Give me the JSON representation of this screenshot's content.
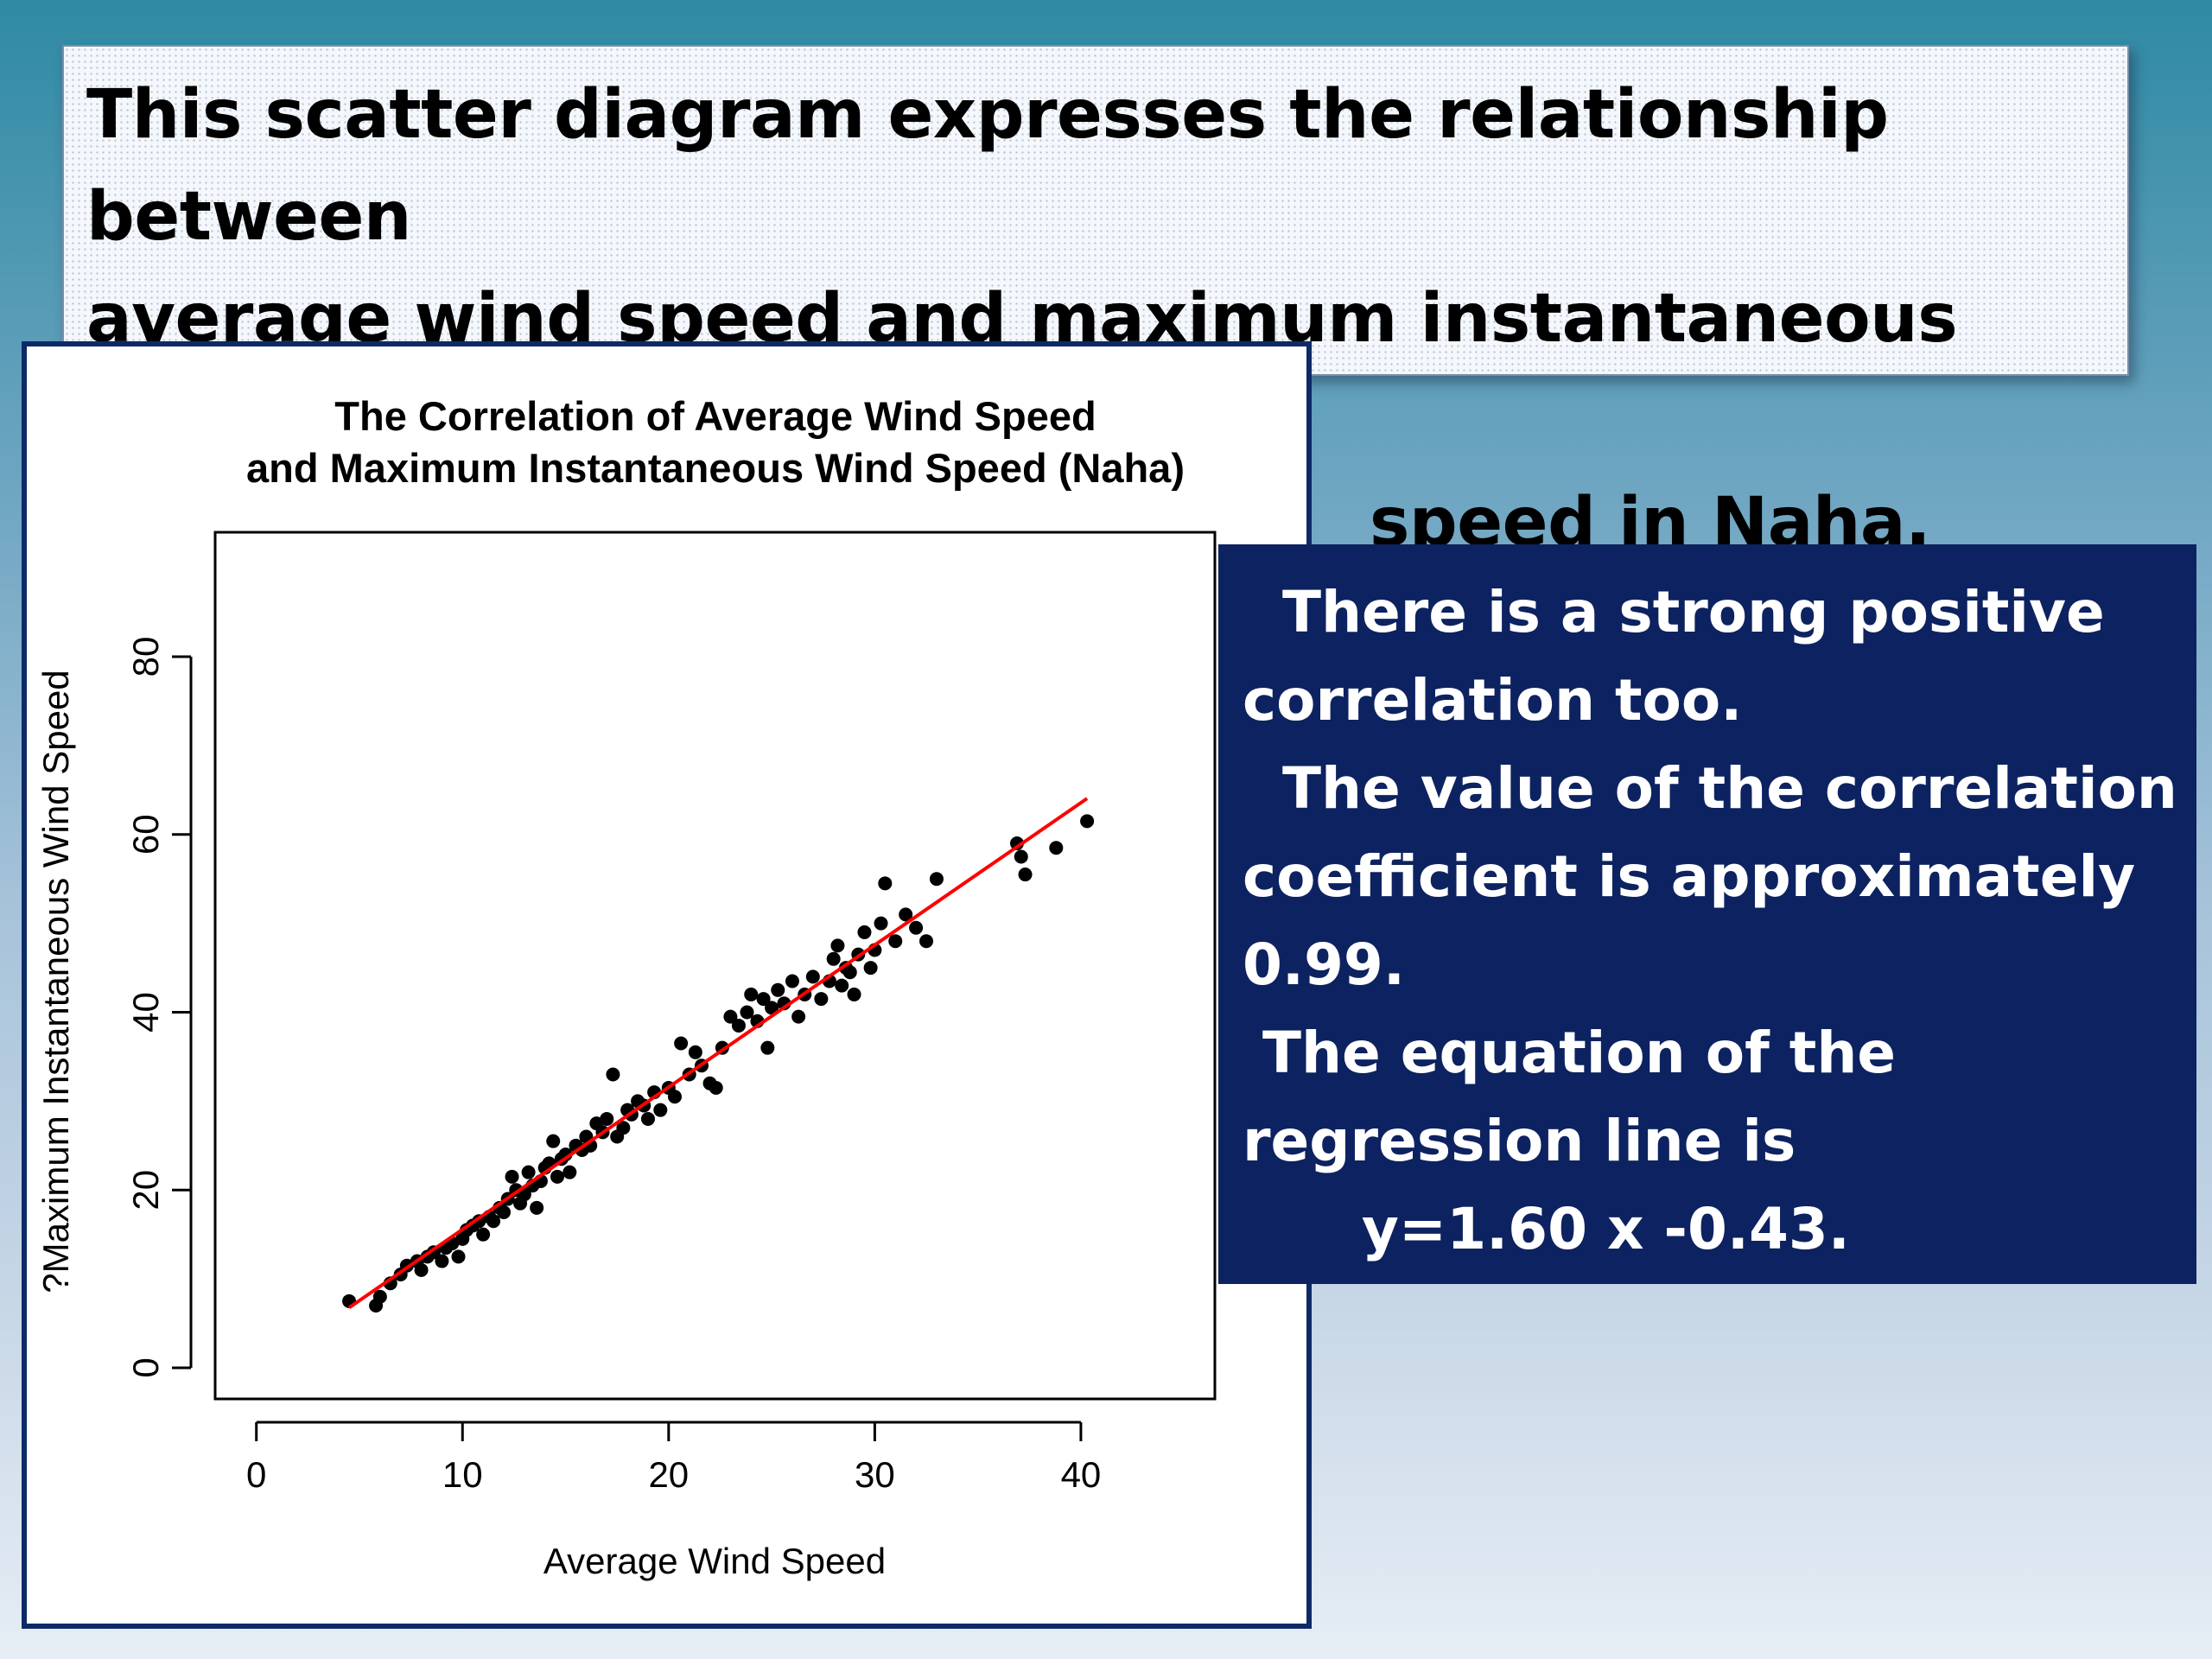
{
  "slide": {
    "headline_line1": "This scatter diagram expresses the relationship between",
    "headline_line2": "average wind speed and maximum instantaneous wind",
    "headline_line3": "speed in Naha.",
    "note_lines": [
      "  There is a strong positive",
      "correlation too.",
      "  The value of the correlation",
      "coefficient is approximately",
      "0.99.",
      " The equation of the",
      "regression line is",
      "      y=1.60 x -0.43."
    ],
    "colors": {
      "panel_border": "#0d2a66",
      "note_background": "#0d2260",
      "point": "#000000",
      "regression_line": "#ff0000"
    }
  },
  "chart_data": {
    "type": "scatter",
    "title_line1": "The Correlation of Average Wind Speed",
    "title_line2": "and Maximum Instantaneous Wind Speed (Naha)",
    "xlabel": "Average Wind Speed",
    "ylabel": "?Maximum Instantaneous Wind Speed",
    "xlim": [
      -2,
      46.5
    ],
    "ylim": [
      -3.5,
      94
    ],
    "x_ticks": [
      0,
      10,
      20,
      30,
      40
    ],
    "y_ticks": [
      0,
      20,
      40,
      60,
      80
    ],
    "grid": false,
    "points": [
      [
        4.5,
        7.5
      ],
      [
        5.8,
        7.0
      ],
      [
        6.0,
        8.0
      ],
      [
        6.5,
        9.5
      ],
      [
        7.0,
        10.5
      ],
      [
        7.3,
        11.5
      ],
      [
        7.8,
        12.0
      ],
      [
        8.0,
        11.0
      ],
      [
        8.3,
        12.5
      ],
      [
        8.6,
        13.0
      ],
      [
        9.0,
        12.0
      ],
      [
        9.2,
        13.5
      ],
      [
        9.5,
        14.0
      ],
      [
        9.8,
        12.5
      ],
      [
        10.0,
        14.5
      ],
      [
        10.2,
        15.5
      ],
      [
        10.5,
        16.0
      ],
      [
        10.8,
        16.5
      ],
      [
        11.0,
        15.0
      ],
      [
        11.3,
        17.0
      ],
      [
        11.5,
        16.5
      ],
      [
        11.8,
        18.0
      ],
      [
        12.0,
        17.5
      ],
      [
        12.2,
        19.0
      ],
      [
        12.4,
        21.5
      ],
      [
        12.6,
        20.0
      ],
      [
        12.8,
        18.5
      ],
      [
        13.0,
        19.5
      ],
      [
        13.2,
        22.0
      ],
      [
        13.4,
        20.5
      ],
      [
        13.6,
        18.0
      ],
      [
        13.8,
        21.0
      ],
      [
        14.0,
        22.5
      ],
      [
        14.2,
        23.0
      ],
      [
        14.4,
        25.5
      ],
      [
        14.6,
        21.5
      ],
      [
        14.8,
        23.5
      ],
      [
        15.0,
        24.0
      ],
      [
        15.2,
        22.0
      ],
      [
        15.5,
        25.0
      ],
      [
        15.8,
        24.5
      ],
      [
        16.0,
        26.0
      ],
      [
        16.2,
        25.0
      ],
      [
        16.5,
        27.5
      ],
      [
        16.8,
        26.5
      ],
      [
        17.0,
        28.0
      ],
      [
        17.3,
        33.0
      ],
      [
        17.5,
        26.0
      ],
      [
        17.8,
        27.0
      ],
      [
        18.0,
        29.0
      ],
      [
        18.2,
        28.5
      ],
      [
        18.5,
        30.0
      ],
      [
        18.8,
        29.5
      ],
      [
        19.0,
        28.0
      ],
      [
        19.3,
        31.0
      ],
      [
        19.6,
        29.0
      ],
      [
        20.0,
        31.5
      ],
      [
        20.3,
        30.5
      ],
      [
        20.6,
        36.5
      ],
      [
        21.0,
        33.0
      ],
      [
        21.3,
        35.5
      ],
      [
        21.6,
        34.0
      ],
      [
        22.0,
        32.0
      ],
      [
        22.3,
        31.5
      ],
      [
        22.6,
        36.0
      ],
      [
        23.0,
        39.5
      ],
      [
        23.4,
        38.5
      ],
      [
        23.8,
        40.0
      ],
      [
        24.0,
        42.0
      ],
      [
        24.3,
        39.0
      ],
      [
        24.6,
        41.5
      ],
      [
        24.8,
        36.0
      ],
      [
        25.0,
        40.5
      ],
      [
        25.3,
        42.5
      ],
      [
        25.6,
        41.0
      ],
      [
        26.0,
        43.5
      ],
      [
        26.3,
        39.5
      ],
      [
        26.6,
        42.0
      ],
      [
        27.0,
        44.0
      ],
      [
        27.4,
        41.5
      ],
      [
        27.8,
        43.5
      ],
      [
        28.0,
        46.0
      ],
      [
        28.2,
        47.5
      ],
      [
        28.4,
        43.0
      ],
      [
        28.6,
        45.0
      ],
      [
        28.8,
        44.5
      ],
      [
        29.0,
        42.0
      ],
      [
        29.2,
        46.5
      ],
      [
        29.5,
        49.0
      ],
      [
        29.8,
        45.0
      ],
      [
        30.0,
        47.0
      ],
      [
        30.3,
        50.0
      ],
      [
        30.5,
        54.5
      ],
      [
        31.0,
        48.0
      ],
      [
        31.5,
        51.0
      ],
      [
        32.0,
        49.5
      ],
      [
        32.5,
        48.0
      ],
      [
        33.0,
        55.0
      ],
      [
        36.9,
        59.0
      ],
      [
        37.1,
        57.5
      ],
      [
        37.3,
        55.5
      ],
      [
        38.8,
        58.5
      ],
      [
        40.3,
        61.5
      ]
    ],
    "regression_line": {
      "slope": 1.6,
      "intercept": -0.43,
      "x_from": 4.5,
      "x_to": 40.3
    }
  }
}
